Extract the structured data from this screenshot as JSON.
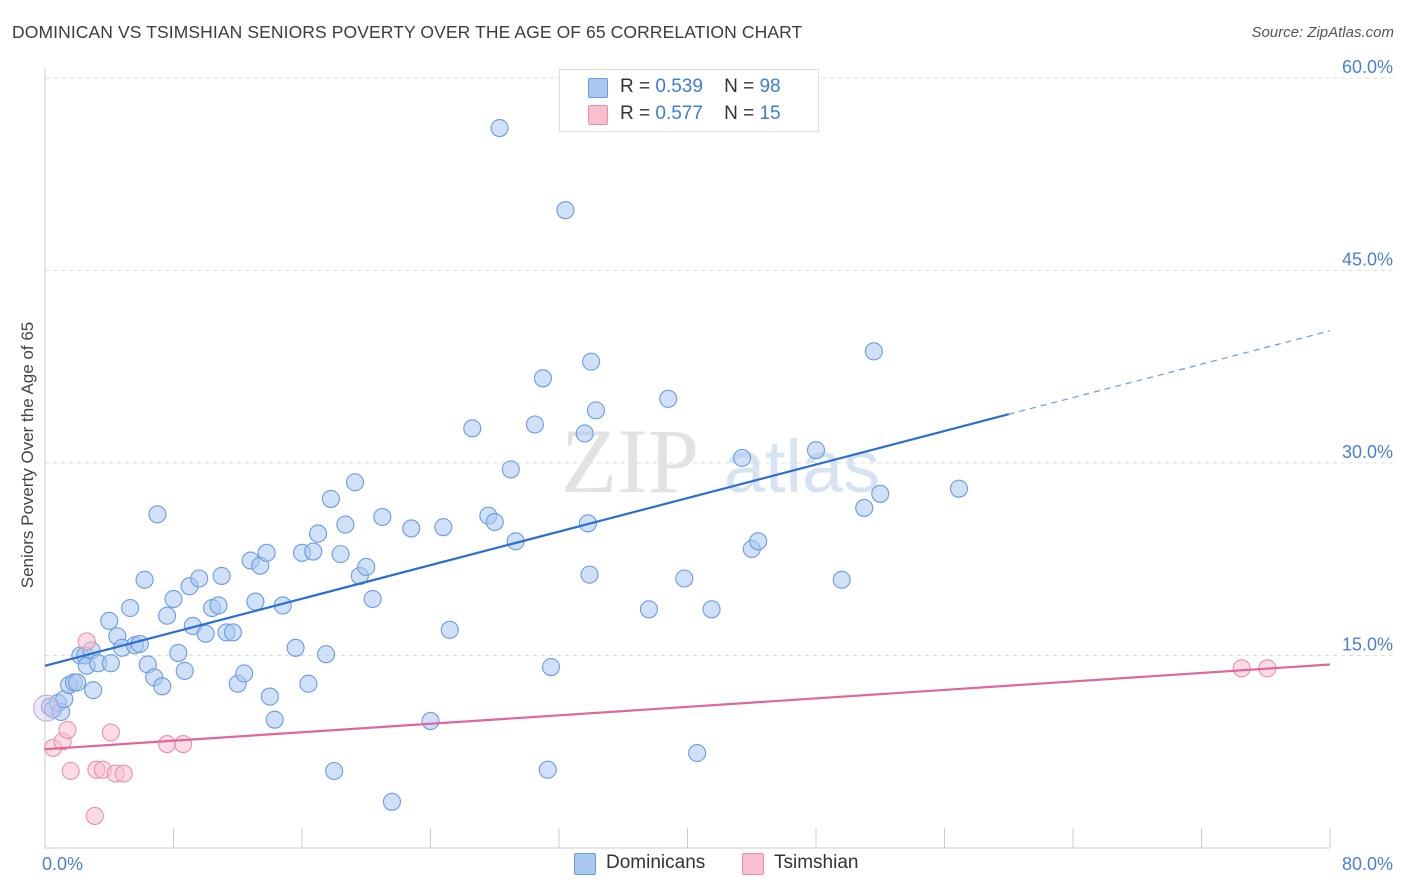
{
  "title": "DOMINICAN VS TSIMSHIAN SENIORS POVERTY OVER THE AGE OF 65 CORRELATION CHART",
  "source": "Source: ZipAtlas.com",
  "watermark": {
    "zip": "ZIP",
    "atlas": "atlas"
  },
  "legend": [
    {
      "r_label": "R =",
      "r_value": "0.539",
      "n_label": "N =",
      "n_value": "98"
    },
    {
      "r_label": "R =",
      "r_value": "0.577",
      "n_label": "N =",
      "n_value": "15"
    }
  ],
  "colors": {
    "blue_fill": "#a9c8f0",
    "blue_stroke": "#6b9be0",
    "blue_line": "#2a6fcf",
    "pink_fill": "#f7bfd0",
    "pink_stroke": "#ea8fab",
    "pink_line": "#e0679a",
    "grid": "#dddddd",
    "axis_text": "#4a7fd4"
  },
  "chart_data": {
    "type": "scatter",
    "title": "DOMINICAN VS TSIMSHIAN SENIORS POVERTY OVER THE AGE OF 65 CORRELATION CHART",
    "xlabel": "",
    "ylabel": "Seniors Poverty Over the Age of 65",
    "xlim": [
      0,
      80
    ],
    "ylim": [
      0,
      63
    ],
    "x_tick_labels": [
      "0.0%",
      "80.0%"
    ],
    "y_ticks": [
      {
        "value": 15,
        "label": "15.0%"
      },
      {
        "value": 30,
        "label": "30.0%"
      },
      {
        "value": 45,
        "label": "45.0%"
      },
      {
        "value": 60,
        "label": "60.0%"
      }
    ],
    "legend_placement": "bottom-center",
    "series": [
      {
        "name": "Dominicans",
        "r": 0.539,
        "n": 98,
        "trend": {
          "x0": 0,
          "y0": 14.2,
          "x1": 60,
          "y1": 33.8,
          "dash_to_x": 80,
          "dash_to_y": 40.3
        },
        "points": [
          [
            0.3,
            11.0
          ],
          [
            0.5,
            10.8
          ],
          [
            0.8,
            11.3
          ],
          [
            1.0,
            10.6
          ],
          [
            1.2,
            11.6
          ],
          [
            1.5,
            12.7
          ],
          [
            1.8,
            12.9
          ],
          [
            2.0,
            12.9
          ],
          [
            2.2,
            15.0
          ],
          [
            2.5,
            15.0
          ],
          [
            2.6,
            14.2
          ],
          [
            2.9,
            15.4
          ],
          [
            3.0,
            12.3
          ],
          [
            3.3,
            14.4
          ],
          [
            4.0,
            17.7
          ],
          [
            4.1,
            14.4
          ],
          [
            4.5,
            16.5
          ],
          [
            4.8,
            15.6
          ],
          [
            5.3,
            18.7
          ],
          [
            5.6,
            15.8
          ],
          [
            5.9,
            15.9
          ],
          [
            6.2,
            20.9
          ],
          [
            6.4,
            14.3
          ],
          [
            6.8,
            13.3
          ],
          [
            7.0,
            26.0
          ],
          [
            7.3,
            12.6
          ],
          [
            7.6,
            18.1
          ],
          [
            8.0,
            19.4
          ],
          [
            8.3,
            15.2
          ],
          [
            8.7,
            13.8
          ],
          [
            9.0,
            20.4
          ],
          [
            9.2,
            17.3
          ],
          [
            9.6,
            21.0
          ],
          [
            10.0,
            16.7
          ],
          [
            10.4,
            18.7
          ],
          [
            10.8,
            18.9
          ],
          [
            11.0,
            21.2
          ],
          [
            11.3,
            16.8
          ],
          [
            11.7,
            16.8
          ],
          [
            12.0,
            12.8
          ],
          [
            12.4,
            13.6
          ],
          [
            12.8,
            22.4
          ],
          [
            13.1,
            19.2
          ],
          [
            13.4,
            22.0
          ],
          [
            13.8,
            23.0
          ],
          [
            14.0,
            11.8
          ],
          [
            14.3,
            10.0
          ],
          [
            14.8,
            18.9
          ],
          [
            15.6,
            15.6
          ],
          [
            16.0,
            23.0
          ],
          [
            16.4,
            12.8
          ],
          [
            16.7,
            23.1
          ],
          [
            17.0,
            24.5
          ],
          [
            17.5,
            15.1
          ],
          [
            17.8,
            27.2
          ],
          [
            18.0,
            6.0
          ],
          [
            18.4,
            22.9
          ],
          [
            18.7,
            25.2
          ],
          [
            19.3,
            28.5
          ],
          [
            19.6,
            21.2
          ],
          [
            20.0,
            21.9
          ],
          [
            20.4,
            19.4
          ],
          [
            21.0,
            25.8
          ],
          [
            21.6,
            3.6
          ],
          [
            22.8,
            24.9
          ],
          [
            24.0,
            9.9
          ],
          [
            24.8,
            25.0
          ],
          [
            25.2,
            17.0
          ],
          [
            26.6,
            32.7
          ],
          [
            27.6,
            25.9
          ],
          [
            28.0,
            25.4
          ],
          [
            28.3,
            56.1
          ],
          [
            29.0,
            29.5
          ],
          [
            29.3,
            23.9
          ],
          [
            30.5,
            33.0
          ],
          [
            31.0,
            36.6
          ],
          [
            31.3,
            6.1
          ],
          [
            31.5,
            14.1
          ],
          [
            32.4,
            49.7
          ],
          [
            33.6,
            32.3
          ],
          [
            33.8,
            25.3
          ],
          [
            33.9,
            21.3
          ],
          [
            34.0,
            37.9
          ],
          [
            34.3,
            34.1
          ],
          [
            37.6,
            18.6
          ],
          [
            38.8,
            35.0
          ],
          [
            39.8,
            21.0
          ],
          [
            40.6,
            7.4
          ],
          [
            41.5,
            18.6
          ],
          [
            43.4,
            30.4
          ],
          [
            44.0,
            23.3
          ],
          [
            44.4,
            23.9
          ],
          [
            48.0,
            31.0
          ],
          [
            49.6,
            20.9
          ],
          [
            51.0,
            26.5
          ],
          [
            51.6,
            38.7
          ],
          [
            52.0,
            27.6
          ],
          [
            56.9,
            28.0
          ]
        ]
      },
      {
        "name": "Tsimshian",
        "r": 0.577,
        "n": 15,
        "trend": {
          "x0": 0,
          "y0": 7.7,
          "x1": 80,
          "y1": 14.3
        },
        "points": [
          [
            0.5,
            7.8
          ],
          [
            1.1,
            8.3
          ],
          [
            1.4,
            9.2
          ],
          [
            1.6,
            6.0
          ],
          [
            2.6,
            16.1
          ],
          [
            3.1,
            2.5
          ],
          [
            3.2,
            6.1
          ],
          [
            3.6,
            6.1
          ],
          [
            4.1,
            9.0
          ],
          [
            4.4,
            5.8
          ],
          [
            4.9,
            5.8
          ],
          [
            7.6,
            8.1
          ],
          [
            8.6,
            8.1
          ],
          [
            74.5,
            14.0
          ],
          [
            76.1,
            14.0
          ]
        ]
      }
    ]
  }
}
